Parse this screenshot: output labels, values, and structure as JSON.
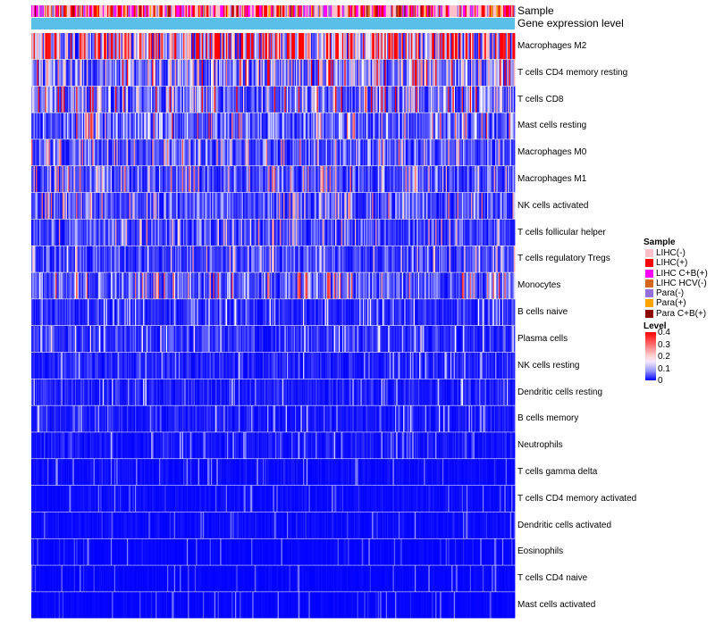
{
  "annotation_rows": [
    "Sample",
    "Gene expression level"
  ],
  "colors": {
    "low": "#0000ff",
    "mid": "#ffffff",
    "high": "#ff0000",
    "expression_bar": "#5bc0e8"
  },
  "legend": {
    "sample_title": "Sample",
    "sample_items": [
      {
        "label": "LIHC(-)",
        "color": "#ffc0cb"
      },
      {
        "label": "LIHC(+)",
        "color": "#ff0000"
      },
      {
        "label": "LIHC C+B(+)",
        "color": "#ff00ff"
      },
      {
        "label": "LIHC HCV(-)",
        "color": "#d2691e"
      },
      {
        "label": "Para(-)",
        "color": "#9370db"
      },
      {
        "label": "Para(+)",
        "color": "#ffa500"
      },
      {
        "label": "Para C+B(+)",
        "color": "#8b0000"
      }
    ],
    "level_title": "Level",
    "level_ticks": [
      "0.4",
      "0.3",
      "0.2",
      "0.1",
      "0"
    ]
  },
  "chart_data": {
    "type": "heatmap",
    "title": "",
    "value_range": [
      0,
      0.4
    ],
    "column_count": 420,
    "rows": [
      {
        "name": "Macrophages M2",
        "mean": 0.3
      },
      {
        "name": "T cells CD4 memory resting",
        "mean": 0.14
      },
      {
        "name": "T cells CD8",
        "mean": 0.12
      },
      {
        "name": "Mast cells resting",
        "mean": 0.09
      },
      {
        "name": "Macrophages M0",
        "mean": 0.08
      },
      {
        "name": "Macrophages M1",
        "mean": 0.08
      },
      {
        "name": "NK cells activated",
        "mean": 0.075
      },
      {
        "name": "T cells follicular helper",
        "mean": 0.07
      },
      {
        "name": "T cells regulatory  Tregs",
        "mean": 0.06
      },
      {
        "name": "Monocytes",
        "mean": 0.09
      },
      {
        "name": "B cells naive",
        "mean": 0.04
      },
      {
        "name": "Plasma cells",
        "mean": 0.045
      },
      {
        "name": "NK cells resting",
        "mean": 0.03
      },
      {
        "name": "Dendritic cells resting",
        "mean": 0.03
      },
      {
        "name": "B cells memory",
        "mean": 0.025
      },
      {
        "name": "Neutrophils",
        "mean": 0.02
      },
      {
        "name": "T cells gamma delta",
        "mean": 0.01
      },
      {
        "name": "T cells CD4 memory activated",
        "mean": 0.01
      },
      {
        "name": "Dendritic cells activated",
        "mean": 0.01
      },
      {
        "name": "Eosinophils",
        "mean": 0.005
      },
      {
        "name": "T cells CD4 naive",
        "mean": 0.005
      },
      {
        "name": "Mast cells activated",
        "mean": 0.005
      }
    ]
  }
}
